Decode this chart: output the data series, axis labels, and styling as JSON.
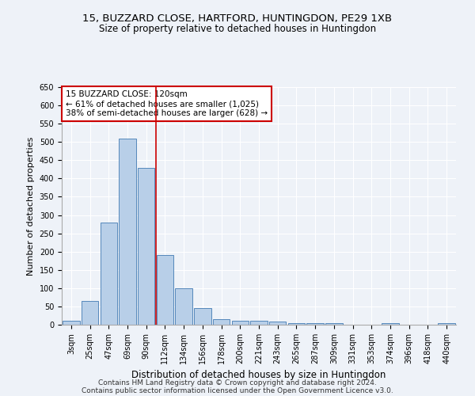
{
  "title1": "15, BUZZARD CLOSE, HARTFORD, HUNTINGDON, PE29 1XB",
  "title2": "Size of property relative to detached houses in Huntingdon",
  "xlabel": "Distribution of detached houses by size in Huntingdon",
  "ylabel": "Number of detached properties",
  "categories": [
    "3sqm",
    "25sqm",
    "47sqm",
    "69sqm",
    "90sqm",
    "112sqm",
    "134sqm",
    "156sqm",
    "178sqm",
    "200sqm",
    "221sqm",
    "243sqm",
    "265sqm",
    "287sqm",
    "309sqm",
    "331sqm",
    "353sqm",
    "374sqm",
    "396sqm",
    "418sqm",
    "440sqm"
  ],
  "values": [
    10,
    65,
    280,
    510,
    430,
    190,
    100,
    45,
    15,
    10,
    10,
    8,
    5,
    5,
    5,
    0,
    0,
    5,
    0,
    0,
    5
  ],
  "bar_color": "#b8cfe8",
  "bar_edge_color": "#5588bb",
  "vline_x_index": 5,
  "vline_color": "#cc0000",
  "annotation_text": "15 BUZZARD CLOSE: 120sqm\n← 61% of detached houses are smaller (1,025)\n38% of semi-detached houses are larger (628) →",
  "annotation_box_color": "#ffffff",
  "annotation_box_edge_color": "#cc0000",
  "ylim": [
    0,
    650
  ],
  "yticks": [
    0,
    50,
    100,
    150,
    200,
    250,
    300,
    350,
    400,
    450,
    500,
    550,
    600,
    650
  ],
  "background_color": "#eef2f8",
  "footer1": "Contains HM Land Registry data © Crown copyright and database right 2024.",
  "footer2": "Contains public sector information licensed under the Open Government Licence v3.0.",
  "title1_fontsize": 9.5,
  "title2_fontsize": 8.5,
  "tick_fontsize": 7,
  "ylabel_fontsize": 8,
  "xlabel_fontsize": 8.5,
  "footer_fontsize": 6.5,
  "annotation_fontsize": 7.5
}
